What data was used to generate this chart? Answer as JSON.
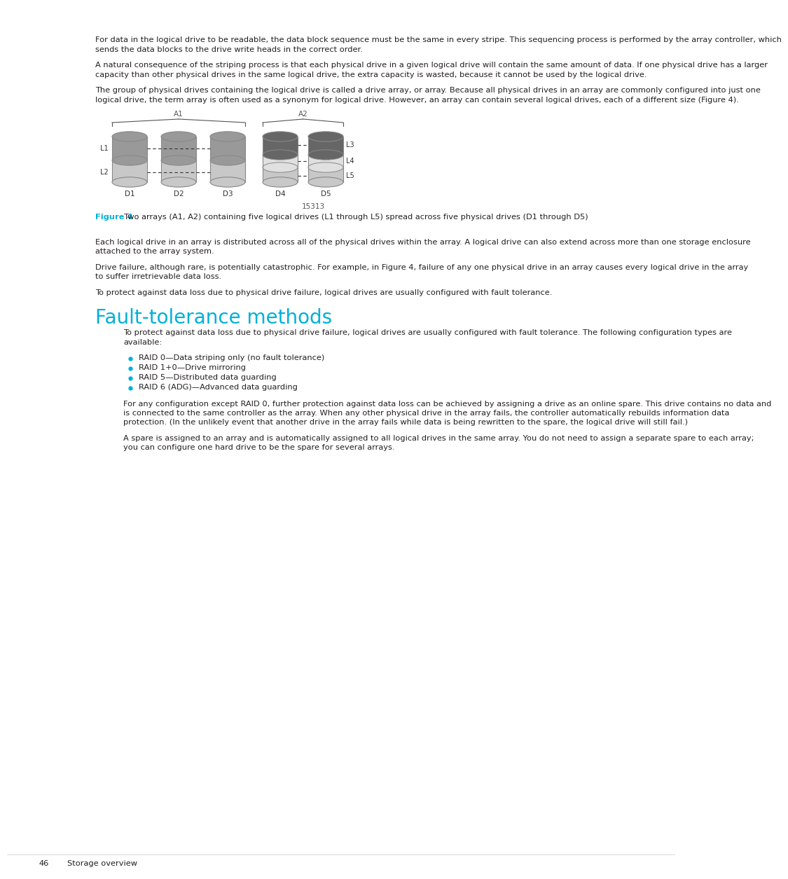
{
  "bg_color": "#ffffff",
  "text_color": "#231f20",
  "cyan_color": "#00b0d8",
  "body_font_size": 8.2,
  "paragraphs": [
    "For data in the logical drive to be readable, the data block sequence must be the same in every stripe. This sequencing process is performed by the array controller, which sends the data blocks to the drive write heads in the correct order.",
    "A natural consequence of the striping process is that each physical drive in a given logical drive will contain the same amount of data. If one physical drive has a larger capacity than other physical drives in the same logical drive, the extra capacity is wasted, because it cannot be used by the logical drive.",
    "The group of physical drives containing the logical drive is called a drive array, or array. Because all physical drives in an array are commonly configured into just one logical drive, the term array is often used as a synonym for logical drive. However, an array can contain several logical drives, each of a different size (Figure 4)."
  ],
  "figure_caption_cyan": "Figure 4",
  "figure_caption_rest": "  Two arrays (A1, A2) containing five logical drives (L1 through L5) spread across five physical\ndrives (D1 through D5)",
  "post_figure_paragraphs": [
    "Each logical drive in an array is distributed across all of the physical drives within the array. A logical drive can also extend across more than one storage enclosure attached to the array system.",
    "Drive failure, although rare, is potentially catastrophic. For example, in [Figure 4], failure of any one physical drive in an array causes every logical drive in the array to suffer irretrievable data loss.",
    "To protect against data loss due to physical drive failure, logical drives are usually configured with fault tolerance."
  ],
  "section_title": "Fault-tolerance methods",
  "section_intro": "To protect against data loss due to physical drive failure, logical drives are usually configured with fault tolerance. The following configuration types are available:",
  "bullet_items": [
    "RAID 0—Data striping only (no fault tolerance)",
    "RAID 1+0—Drive mirroring",
    "RAID 5—Distributed data guarding",
    "RAID 6 (ADG)—Advanced data guarding"
  ],
  "post_bullet_paragraphs": [
    "For any configuration except RAID 0, further protection against data loss can be achieved by assigning a drive as an online spare. This drive contains no data and is connected to the same controller as the array. When any other physical drive in the array fails, the controller automatically rebuilds information data protection. (In the unlikely event that another drive in the array fails while data is being rewritten to the spare, the logical drive will still fail.)",
    "A spare is assigned to an array and is automatically assigned to all logical drives in the same array. You do not need to assign a separate spare to each array; you can configure one hard drive to be the spare for several arrays."
  ],
  "footer_page": "46",
  "footer_section": "Storage overview",
  "figure4_label": "15313",
  "dark_gray": "#666666",
  "mid_gray": "#999999",
  "light_gray": "#c8c8c8",
  "white_gray": "#e0e0e0",
  "edge_color": "#888888"
}
